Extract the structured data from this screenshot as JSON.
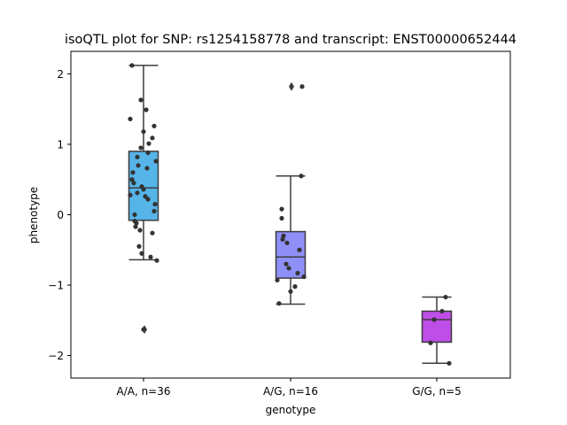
{
  "chart_data": {
    "type": "box",
    "title": "isoQTL plot for SNP: rs1254158778 and transcript: ENST00000652444",
    "xlabel": "genotype",
    "ylabel": "phenotype",
    "ylim": [
      -2.32,
      2.32
    ],
    "yticks": [
      -2,
      -1,
      0,
      1,
      2
    ],
    "ytick_labels": [
      "−2",
      "−1",
      "0",
      "1",
      "2"
    ],
    "grid": false,
    "categories": [
      "A/A, n=36",
      "A/G, n=16",
      "G/G, n=5"
    ],
    "colors": [
      "#56b4e9",
      "#8f8ff8",
      "#bf4de8"
    ],
    "boxes": [
      {
        "category": "A/A, n=36",
        "q1": -0.08,
        "median": 0.38,
        "q3": 0.9,
        "whisker_low": -0.64,
        "whisker_high": 2.12,
        "fliers": [
          -1.63
        ]
      },
      {
        "category": "A/G, n=16",
        "q1": -0.9,
        "median": -0.6,
        "q3": -0.24,
        "whisker_low": -1.27,
        "whisker_high": 0.55,
        "fliers": [
          1.82
        ]
      },
      {
        "category": "G/G, n=5",
        "q1": -1.81,
        "median": -1.49,
        "q3": -1.37,
        "whisker_low": -2.11,
        "whisker_high": -1.17,
        "fliers": []
      }
    ],
    "points": [
      [
        2.12,
        1.63,
        1.49,
        1.36,
        1.26,
        1.18,
        1.09,
        1.01,
        0.95,
        0.82,
        0.76,
        0.7,
        0.66,
        0.6,
        0.5,
        0.45,
        0.4,
        0.36,
        0.31,
        0.26,
        0.22,
        0.15,
        0.05,
        0.0,
        -0.09,
        -0.12,
        -0.17,
        -0.22,
        -0.26,
        -0.45,
        -0.55,
        -0.6,
        -0.65,
        0.28,
        0.88,
        -1.63
      ],
      [
        1.82,
        0.55,
        0.08,
        -0.05,
        -0.3,
        -0.35,
        -0.4,
        -0.5,
        -0.7,
        -0.76,
        -0.83,
        -0.88,
        -0.93,
        -1.02,
        -1.09,
        -1.26
      ],
      [
        -1.17,
        -1.37,
        -1.49,
        -1.82,
        -2.11
      ]
    ]
  }
}
